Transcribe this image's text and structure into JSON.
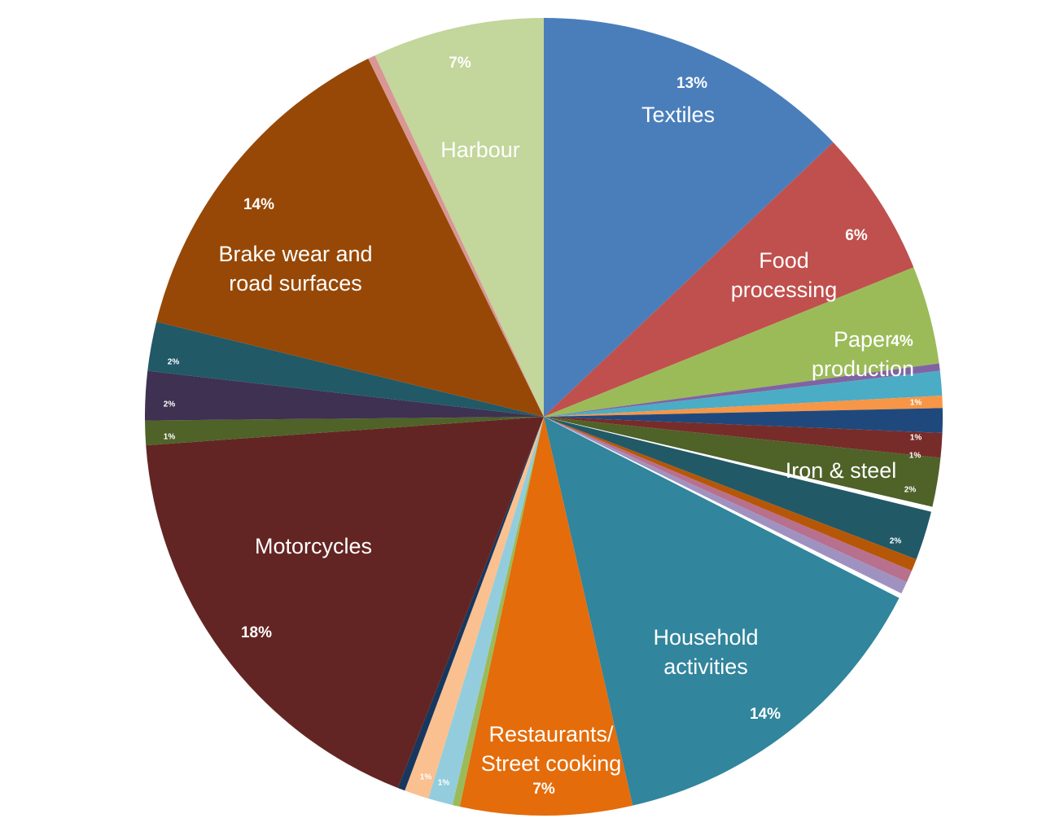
{
  "chart_data": {
    "type": "pie",
    "categories": [
      "Textiles",
      "Food\nprocessing",
      "Paper\nproduction",
      null,
      null,
      null,
      null,
      null,
      "Iron & steel",
      null,
      null,
      null,
      null,
      null,
      null,
      "Household\nactivities",
      "Restaurants/\nStreet cooking",
      null,
      null,
      null,
      null,
      "Motorcycles",
      null,
      null,
      null,
      "Brake wear and\nroad surfaces",
      null,
      "Harbour"
    ],
    "values": [
      13,
      6,
      4,
      0.3,
      1,
      0.5,
      1,
      1,
      2,
      0.2,
      2,
      0.5,
      0.5,
      0.5,
      0.2,
      14,
      7,
      0.3,
      1,
      1,
      0.3,
      18,
      1,
      2,
      2,
      14,
      0.3,
      7
    ],
    "value_labels": [
      "13%",
      "6%",
      "4%",
      null,
      "1%",
      null,
      "1%",
      "1%",
      "2%",
      null,
      "2%",
      null,
      null,
      null,
      null,
      "14%",
      "7%",
      null,
      "1%",
      "1%",
      null,
      "18%",
      "1%",
      "2%",
      "2%",
      "14%",
      null,
      "7%"
    ],
    "colors": [
      "#4a7ebb",
      "#c0504d",
      "#9bbb59",
      "#8064a2",
      "#4bacc6",
      "#f79646",
      "#1f497d",
      "#772c2a",
      "#4f6228",
      "#ffffff",
      "#215967",
      "#b65708",
      "#b7708e",
      "#a092c0",
      "#ffffff",
      "#31859c",
      "#e46c0a",
      "#9bbb59",
      "#93cddd",
      "#fac090",
      "#17375e",
      "#632523",
      "#4f6228",
      "#3f3151",
      "#215967",
      "#974806",
      "#d99694",
      "#c3d69b"
    ]
  }
}
